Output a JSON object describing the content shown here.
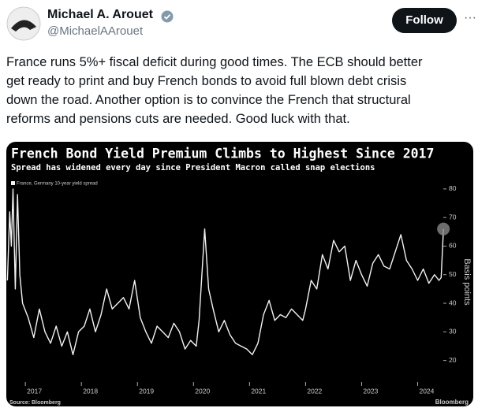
{
  "tweet": {
    "name": "Michael A. Arouet",
    "handle": "@MichaelAArouet",
    "follow": "Follow",
    "text": [
      "France runs 5%+ fiscal deficit during good times. The ECB should better",
      "get ready to print and buy French bonds to avoid full blown debt crisis",
      "down the road. Another option is to convince the French that structural",
      "reforms and pensions cuts are needed. Good luck with that."
    ]
  },
  "chart_data": {
    "type": "line",
    "title": "French Bond Yield Premium Climbs to Highest Since 2017",
    "subtitle": "Spread has widened every day since President Macron called snap elections",
    "y_label": "Basis points",
    "source": "Source: Bloomberg",
    "brand": "Bloomberg",
    "x": [
      2016.68,
      2016.72,
      2016.75,
      2016.78,
      2016.82,
      2016.86,
      2016.9,
      2016.95,
      2017.05,
      2017.15,
      2017.25,
      2017.35,
      2017.45,
      2017.55,
      2017.65,
      2017.75,
      2017.85,
      2017.95,
      2018.05,
      2018.15,
      2018.25,
      2018.35,
      2018.45,
      2018.55,
      2018.65,
      2018.75,
      2018.85,
      2018.95,
      2019.05,
      2019.15,
      2019.25,
      2019.35,
      2019.45,
      2019.55,
      2019.65,
      2019.75,
      2019.85,
      2019.95,
      2020.05,
      2020.1,
      2020.2,
      2020.27,
      2020.35,
      2020.45,
      2020.55,
      2020.65,
      2020.75,
      2020.85,
      2020.95,
      2021.05,
      2021.15,
      2021.25,
      2021.35,
      2021.45,
      2021.55,
      2021.65,
      2021.75,
      2021.85,
      2021.95,
      2022.0,
      2022.1,
      2022.2,
      2022.3,
      2022.4,
      2022.5,
      2022.6,
      2022.7,
      2022.8,
      2022.9,
      2023.0,
      2023.1,
      2023.2,
      2023.3,
      2023.4,
      2023.5,
      2023.6,
      2023.7,
      2023.8,
      2023.9,
      2024.0,
      2024.1,
      2024.2,
      2024.3,
      2024.38,
      2024.42,
      2024.46
    ],
    "series": [
      {
        "name": "France, Germany 10-year yield spread",
        "color": "#f2f2f2",
        "values": [
          48,
          72,
          60,
          80,
          45,
          78,
          50,
          40,
          35,
          28,
          38,
          30,
          26,
          32,
          25,
          30,
          22,
          30,
          32,
          38,
          30,
          36,
          45,
          38,
          40,
          42,
          38,
          48,
          35,
          30,
          26,
          32,
          30,
          28,
          33,
          30,
          24,
          27,
          25,
          34,
          66,
          45,
          38,
          30,
          34,
          29,
          26,
          25,
          24,
          22,
          26,
          36,
          41,
          34,
          36,
          35,
          38,
          36,
          34,
          38,
          48,
          45,
          57,
          52,
          62,
          58,
          60,
          48,
          55,
          50,
          46,
          54,
          57,
          53,
          52,
          58,
          64,
          55,
          52,
          48,
          52,
          47,
          50,
          48,
          49,
          66
        ]
      }
    ],
    "xlim": [
      2016.66,
      2024.5
    ],
    "xticks": [
      2017,
      2018,
      2019,
      2020,
      2021,
      2022,
      2023,
      2024
    ],
    "ylim": [
      13,
      83
    ],
    "yticks": [
      20,
      30,
      40,
      50,
      60,
      70,
      80
    ]
  }
}
